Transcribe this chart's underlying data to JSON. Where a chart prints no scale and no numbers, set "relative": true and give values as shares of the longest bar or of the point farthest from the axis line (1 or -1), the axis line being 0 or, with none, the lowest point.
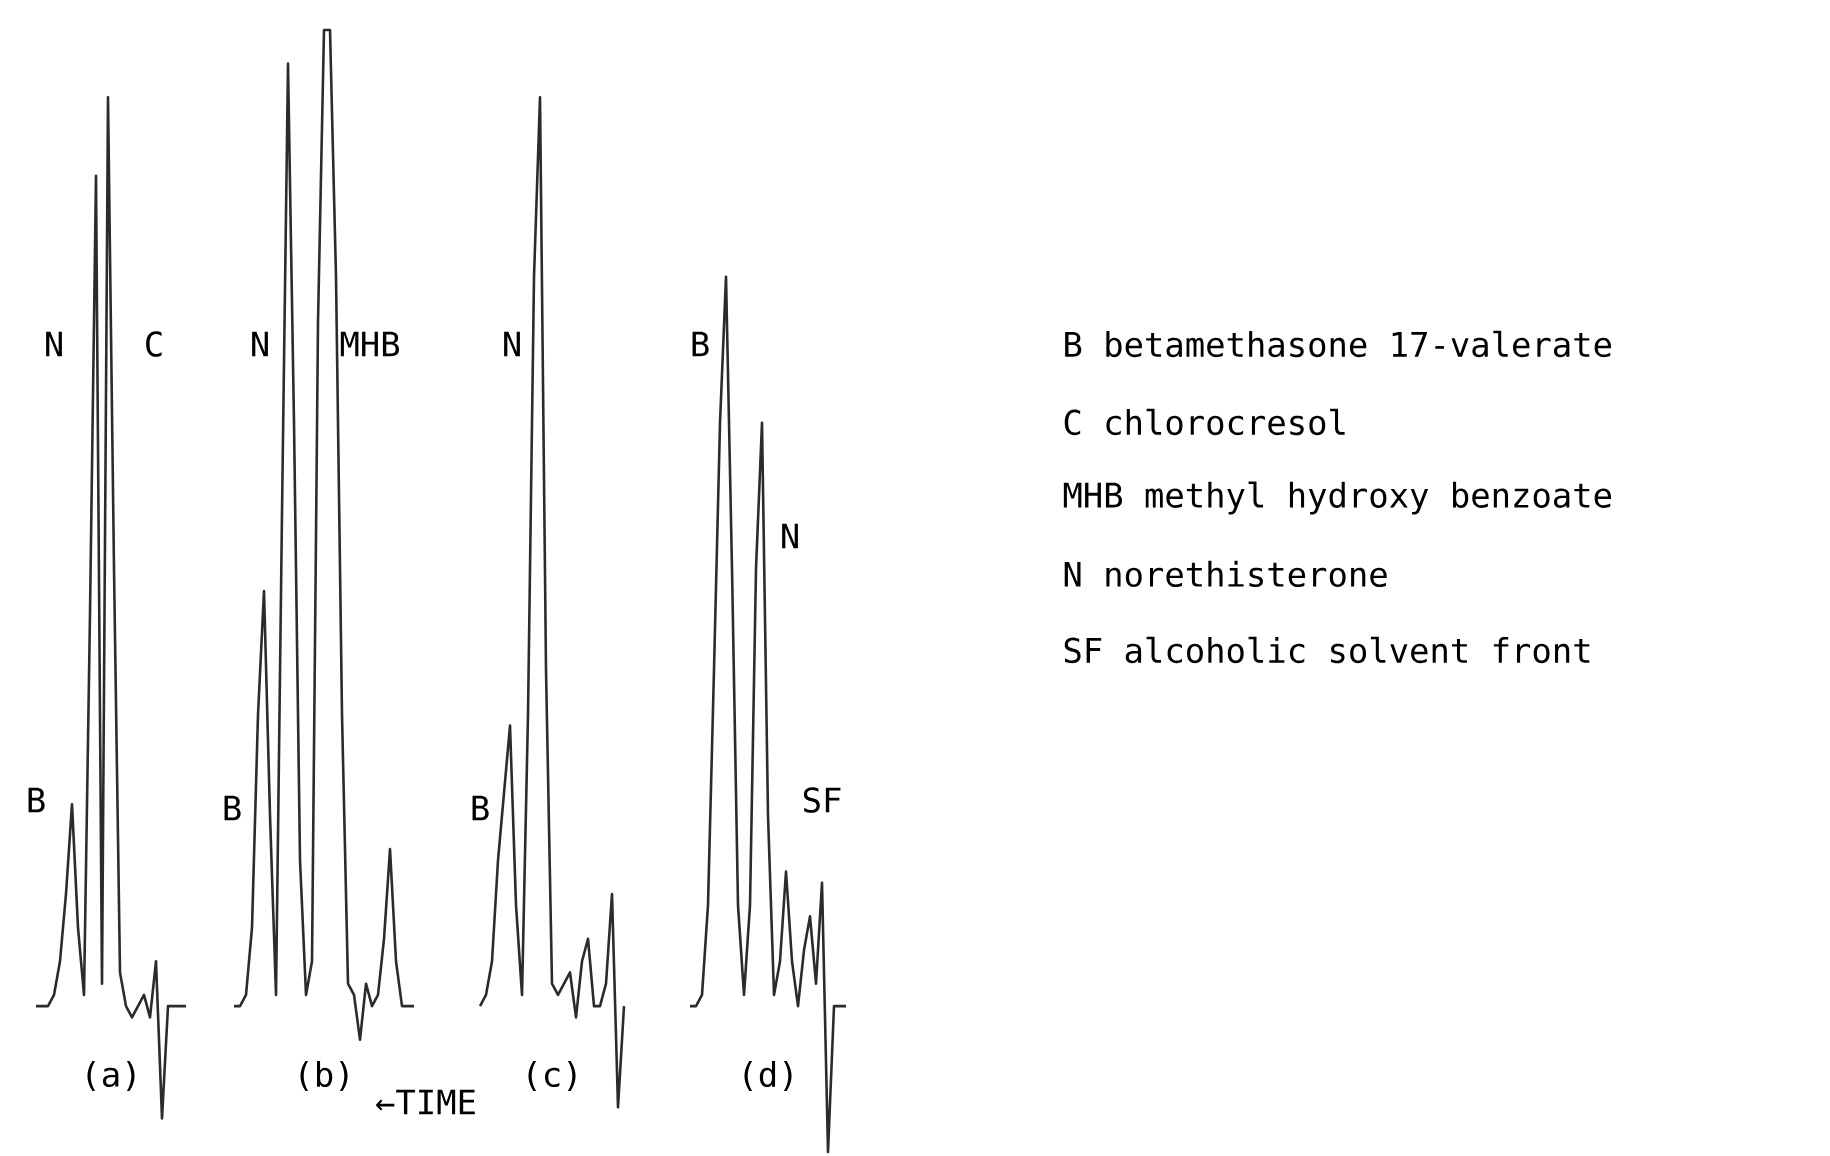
{
  "chart_data": {
    "type": "line",
    "relative": true,
    "xlabel": "←TIME",
    "categories": [
      null,
      null,
      null,
      null,
      null,
      null,
      null,
      null,
      null,
      null,
      null,
      null,
      null,
      null,
      null,
      null,
      null,
      null,
      null,
      null,
      null,
      null,
      null,
      null,
      null,
      null,
      null,
      null,
      null,
      null,
      null,
      null,
      null,
      null,
      null,
      null,
      null,
      null,
      null,
      null,
      null,
      null,
      null,
      null,
      null,
      null,
      null,
      null,
      null,
      null,
      null,
      null,
      null,
      null,
      null,
      null,
      null,
      null,
      null,
      null,
      null,
      null,
      null,
      null,
      null,
      null,
      null,
      null,
      null,
      null,
      null,
      null,
      null,
      null,
      null,
      null,
      null,
      null,
      null,
      null,
      null,
      null,
      null,
      null,
      null,
      null,
      null,
      null,
      null,
      null,
      null,
      null,
      null,
      null,
      null,
      null,
      null,
      null,
      null,
      null,
      null,
      null,
      null,
      null,
      null,
      null,
      null,
      null,
      null,
      null,
      null,
      null,
      null,
      null,
      null,
      null,
      null,
      null,
      null,
      null,
      null,
      null,
      null,
      null,
      null,
      null,
      null,
      null,
      null,
      null,
      null,
      null,
      null,
      null,
      null,
      null
    ],
    "series": [
      {
        "name": "(a)",
        "color": "#2b2b2b",
        "values": [
          0.13,
          0.13,
          0.13,
          0.14,
          0.17,
          0.23,
          0.31,
          0.2,
          0.14,
          0.48,
          0.87,
          0.15,
          0.94,
          0.52,
          0.16,
          0.13,
          0.12,
          0.13,
          0.14,
          0.12,
          0.17,
          0.03,
          0.13,
          0.13,
          0.13,
          0.13,
          null,
          null,
          null,
          null,
          null,
          null,
          null,
          null,
          null,
          null,
          null,
          null,
          null,
          null,
          null,
          null,
          null,
          null,
          null,
          null,
          null,
          null,
          null,
          null,
          null,
          null,
          null,
          null,
          null,
          null,
          null,
          null,
          null,
          null,
          null,
          null,
          null,
          null,
          null,
          null,
          null,
          null,
          null,
          null,
          null,
          null,
          null,
          null,
          null,
          null,
          null,
          null,
          null,
          null,
          null,
          null,
          null,
          null,
          null,
          null,
          null,
          null,
          null,
          null,
          null,
          null,
          null,
          null,
          null,
          null,
          null,
          null,
          null,
          null,
          null,
          null,
          null,
          null,
          null,
          null,
          null,
          null,
          null,
          null,
          null,
          null,
          null,
          null,
          null,
          null,
          null,
          null,
          null,
          null,
          null,
          null,
          null,
          null,
          null,
          null,
          null,
          null,
          null,
          null,
          null,
          null,
          null,
          null,
          null,
          null
        ]
      },
      {
        "name": "(b)",
        "color": "#2b2b2b",
        "values": [
          null,
          null,
          null,
          null,
          null,
          null,
          null,
          null,
          null,
          null,
          null,
          null,
          null,
          null,
          null,
          null,
          null,
          null,
          null,
          null,
          null,
          null,
          null,
          null,
          null,
          null,
          null,
          null,
          null,
          null,
          null,
          null,
          null,
          0.13,
          0.13,
          0.14,
          0.2,
          0.39,
          0.5,
          0.3,
          0.14,
          0.57,
          0.97,
          0.65,
          0.26,
          0.14,
          0.17,
          0.74,
          1,
          1,
          0.78,
          0.39,
          0.15,
          0.14,
          0.1,
          0.15,
          0.13,
          0.14,
          0.19,
          0.27,
          0.17,
          0.13,
          0.13,
          0.13,
          null,
          null,
          null,
          null,
          null,
          null,
          null,
          null,
          null,
          null,
          null,
          null,
          null,
          null,
          null,
          null,
          null,
          null,
          null,
          null,
          null,
          null,
          null,
          null,
          null,
          null,
          null,
          null,
          null,
          null,
          null,
          null,
          null,
          null,
          null,
          null,
          null,
          null,
          null,
          null,
          null,
          null,
          null,
          null,
          null,
          null,
          null,
          null,
          null,
          null,
          null,
          null,
          null,
          null,
          null,
          null,
          null,
          null,
          null,
          null,
          null,
          null,
          null,
          null,
          null,
          null,
          null,
          null,
          null,
          null,
          null,
          null
        ]
      },
      {
        "name": "(c)",
        "color": "#2b2b2b",
        "values": [
          null,
          null,
          null,
          null,
          null,
          null,
          null,
          null,
          null,
          null,
          null,
          null,
          null,
          null,
          null,
          null,
          null,
          null,
          null,
          null,
          null,
          null,
          null,
          null,
          null,
          null,
          null,
          null,
          null,
          null,
          null,
          null,
          null,
          null,
          null,
          null,
          null,
          null,
          null,
          null,
          null,
          null,
          null,
          null,
          null,
          null,
          null,
          null,
          null,
          null,
          null,
          null,
          null,
          null,
          null,
          null,
          null,
          null,
          null,
          null,
          null,
          null,
          null,
          null,
          null,
          null,
          null,
          null,
          null,
          null,
          null,
          null,
          null,
          null,
          0.13,
          0.14,
          0.17,
          0.26,
          0.32,
          0.38,
          0.22,
          0.14,
          0.39,
          0.78,
          0.94,
          0.43,
          0.15,
          0.14,
          0.15,
          0.16,
          0.12,
          0.17,
          0.19,
          0.13,
          0.13,
          0.15,
          0.23,
          0.04,
          0.13,
          null,
          null,
          null,
          null,
          null,
          null,
          null,
          null,
          null,
          null,
          null,
          null,
          null,
          null,
          null,
          null,
          null,
          null,
          null,
          null,
          null,
          null,
          null,
          null,
          null,
          null,
          null,
          null,
          null,
          null,
          null,
          null,
          null,
          null,
          null,
          null,
          null
        ]
      },
      {
        "name": "(d)",
        "color": "#2b2b2b",
        "values": [
          null,
          null,
          null,
          null,
          null,
          null,
          null,
          null,
          null,
          null,
          null,
          null,
          null,
          null,
          null,
          null,
          null,
          null,
          null,
          null,
          null,
          null,
          null,
          null,
          null,
          null,
          null,
          null,
          null,
          null,
          null,
          null,
          null,
          null,
          null,
          null,
          null,
          null,
          null,
          null,
          null,
          null,
          null,
          null,
          null,
          null,
          null,
          null,
          null,
          null,
          null,
          null,
          null,
          null,
          null,
          null,
          null,
          null,
          null,
          null,
          null,
          null,
          null,
          null,
          null,
          null,
          null,
          null,
          null,
          null,
          null,
          null,
          null,
          null,
          null,
          null,
          null,
          null,
          null,
          null,
          null,
          null,
          null,
          null,
          null,
          null,
          null,
          null,
          null,
          null,
          null,
          null,
          null,
          null,
          null,
          null,
          null,
          null,
          null,
          null,
          null,
          null,
          null,
          null,
          null,
          null,
          null,
          null,
          null,
          0.13,
          0.13,
          0.14,
          0.22,
          0.43,
          0.65,
          0.78,
          0.52,
          0.22,
          0.14,
          0.22,
          0.52,
          0.65,
          0.3,
          0.14,
          0.17,
          0.25,
          0.17,
          0.13,
          0.18,
          0.21,
          0.15,
          0.24,
          0,
          0.13,
          0.13,
          0.13
        ]
      }
    ],
    "annotations": [
      "N",
      "C",
      "B",
      "N",
      "MHB",
      "B",
      "N",
      "B",
      "B",
      "N",
      "SF",
      "B betamethasone 17-valerate",
      "C chlorocresol",
      "MHB methyl hydroxy benzoate",
      "N norethisterone",
      "SF alcoholic solvent front"
    ]
  }
}
